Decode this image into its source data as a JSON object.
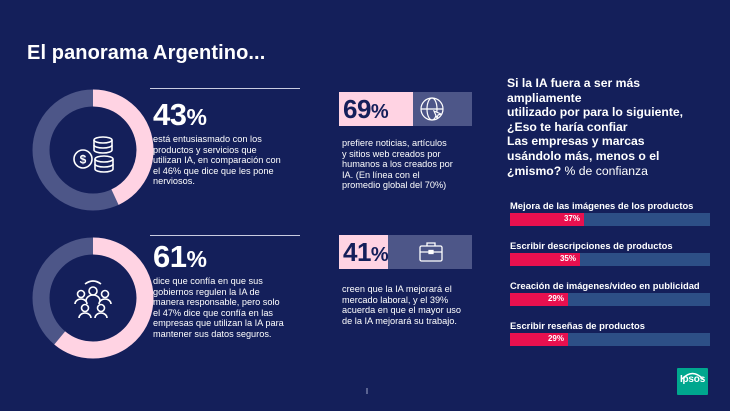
{
  "title": "El panorama Argentino...",
  "colors": {
    "background": "#141f5a",
    "donut_accent": "#ffd3e3",
    "donut_track": "#4d5688",
    "bar_fill": "#e8104f",
    "bar_track": "#2d4f86",
    "logo": "#00a78e"
  },
  "stats_left": [
    {
      "value": "43",
      "sign": "%",
      "fraction": 0.43,
      "icon": "coins-dollar-icon",
      "text": [
        "está entusiasmado con los",
        "productos y servicios que",
        "utilizan IA, en comparación con",
        "el 46% que dice que les pone",
        "nerviosos."
      ]
    },
    {
      "value": "61",
      "sign": "%",
      "fraction": 0.61,
      "icon": "people-group-icon",
      "text": [
        "dice que confía en que sus",
        "gobiernos regulen la IA de",
        "manera responsable, pero solo",
        "el 47% dice que confía en las",
        "empresas que utilizan la IA para",
        "mantener sus datos seguros."
      ]
    }
  ],
  "stats_mid": [
    {
      "value": "69",
      "sign": "%",
      "icon": "globe-cursor-icon",
      "text": [
        "prefiere noticias, artículos",
        "y sitios web creados por",
        "humanos a los creados por",
        "IA. (En línea con el",
        "promedio global del 70%)"
      ]
    },
    {
      "value": "41",
      "sign": "%",
      "icon": "briefcase-icon",
      "text": [
        "creen que la IA mejorará el",
        "mercado laboral, y el 39%",
        "acuerda en que el mayor uso",
        "de la IA mejorará su trabajo."
      ]
    }
  ],
  "right_heading": {
    "lines": [
      "Si la IA fuera a ser más",
      "ampliamente",
      "utilizado por para lo siguiente,",
      "¿Eso te haría confiar",
      "Las empresas y marcas",
      "usándolo más, menos o el"
    ],
    "last_bold": "¿mismo?",
    "last_suffix": " % de confianza"
  },
  "chart_data": {
    "type": "bar",
    "categories": [
      "Mejora de las imágenes de los productos",
      "Escribir descripciones de productos",
      "Creación de imágenes/video en publicidad",
      "Escribir reseñas de productos"
    ],
    "values": [
      37,
      35,
      29,
      29
    ],
    "value_labels": [
      "37%",
      "35%",
      "29%",
      "29%"
    ],
    "ylim": [
      0,
      100
    ]
  },
  "logo_text": "Ipsos"
}
